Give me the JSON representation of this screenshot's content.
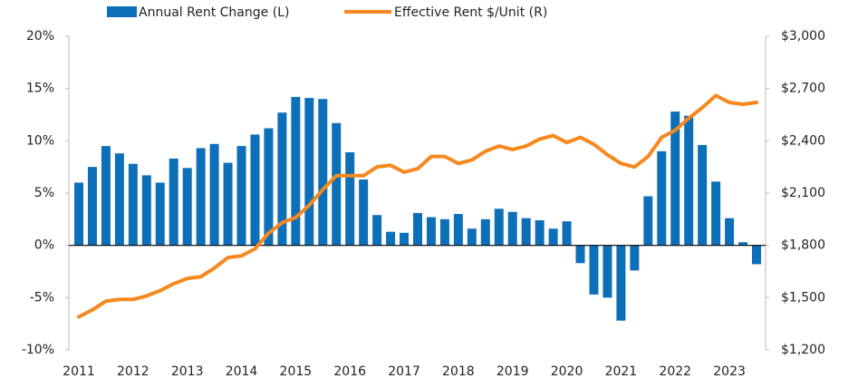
{
  "chart_data": {
    "type": "bar_line",
    "categories": [
      "2011",
      null,
      null,
      null,
      "2012",
      null,
      null,
      null,
      "2013",
      null,
      null,
      null,
      "2014",
      null,
      null,
      null,
      "2015",
      null,
      null,
      null,
      "2016",
      null,
      null,
      null,
      "2017",
      null,
      null,
      null,
      "2018",
      null,
      null,
      null,
      "2019",
      null,
      null,
      null,
      "2020",
      null,
      null,
      null,
      "2021",
      null,
      null,
      null,
      "2022",
      null,
      null,
      null,
      "2023",
      null,
      null
    ],
    "series": [
      {
        "name": "Annual Rent Change (L)",
        "type": "bar",
        "color": "#0d6fb8",
        "values": [
          6.0,
          7.5,
          9.5,
          8.8,
          7.8,
          6.7,
          6.0,
          8.3,
          7.4,
          9.3,
          9.7,
          7.9,
          9.5,
          10.6,
          11.2,
          12.7,
          14.2,
          14.1,
          14.0,
          11.7,
          8.9,
          6.3,
          2.9,
          1.3,
          1.2,
          3.1,
          2.7,
          2.5,
          3.0,
          1.6,
          2.5,
          3.5,
          3.2,
          2.6,
          2.4,
          1.6,
          2.3,
          -1.7,
          -4.7,
          -5.0,
          -7.2,
          -2.4,
          4.7,
          9.0,
          12.8,
          12.4,
          9.6,
          6.1,
          2.6,
          0.3,
          -1.8
        ]
      },
      {
        "name": "Effective Rent $/Unit (R)",
        "type": "line",
        "axis": "y2",
        "color": "#f5891f",
        "values": [
          1390,
          1430,
          1480,
          1490,
          1490,
          1510,
          1540,
          1580,
          1610,
          1620,
          1670,
          1730,
          1740,
          1780,
          1870,
          1930,
          1960,
          2030,
          2120,
          2200,
          2200,
          2200,
          2250,
          2260,
          2220,
          2240,
          2310,
          2310,
          2270,
          2290,
          2340,
          2370,
          2350,
          2370,
          2410,
          2430,
          2390,
          2420,
          2380,
          2320,
          2270,
          2250,
          2310,
          2420,
          2460,
          2530,
          2590,
          2660,
          2620,
          2610,
          2620
        ]
      }
    ],
    "ylim": [
      -10,
      20
    ],
    "yticks": [
      {
        "value": -10,
        "label": "-10%"
      },
      {
        "value": -5,
        "label": "-5%"
      },
      {
        "value": 0,
        "label": "0%"
      },
      {
        "value": 5,
        "label": "5%"
      },
      {
        "value": 10,
        "label": "10%"
      },
      {
        "value": 15,
        "label": "15%"
      },
      {
        "value": 20,
        "label": "20%"
      }
    ],
    "y2lim": [
      1200,
      3000
    ],
    "y2ticks": [
      {
        "value": 1200,
        "label": "$1,200"
      },
      {
        "value": 1500,
        "label": "$1,500"
      },
      {
        "value": 1800,
        "label": "$1,800"
      },
      {
        "value": 2100,
        "label": "$2,100"
      },
      {
        "value": 2400,
        "label": "$2,400"
      },
      {
        "value": 2700,
        "label": "$2,700"
      },
      {
        "value": 3000,
        "label": "$3,000"
      }
    ],
    "legend": "top"
  }
}
